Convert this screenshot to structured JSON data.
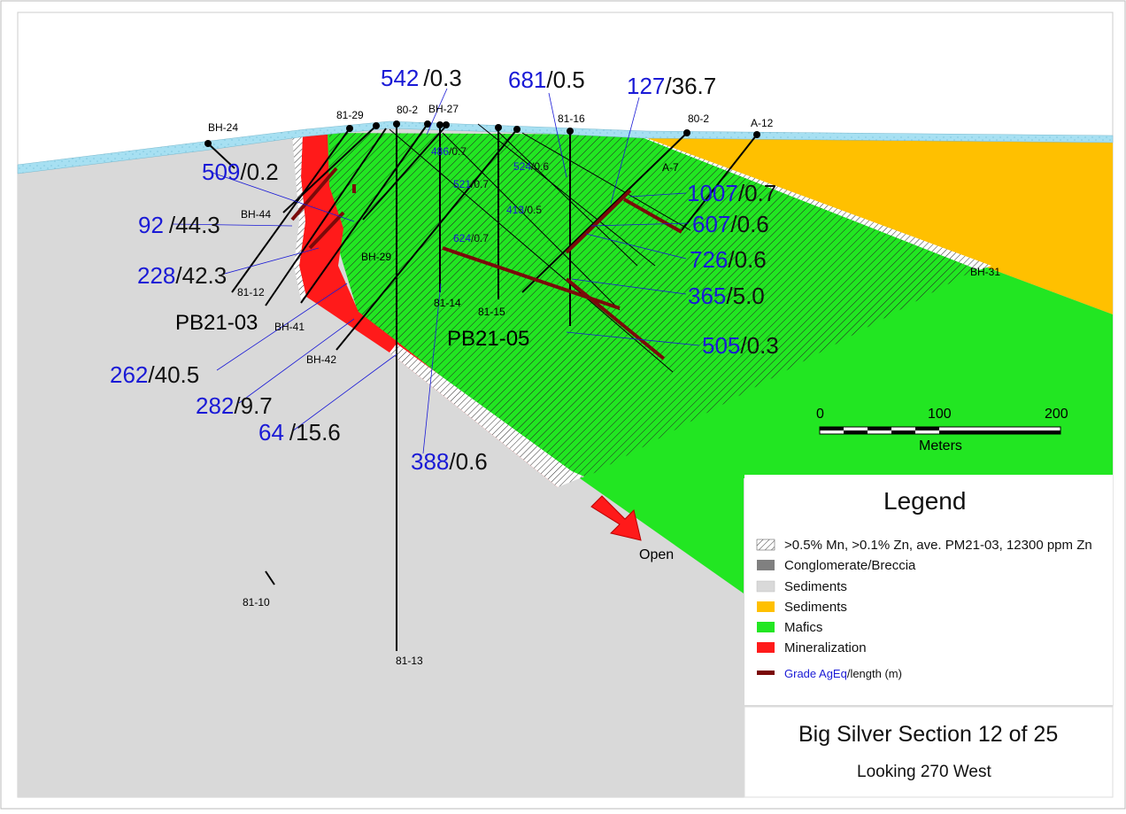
{
  "colors": {
    "sediments_grey": "#d9d9d9",
    "sediments_orange": "#ffc000",
    "mafics": "#22e622",
    "mineralization": "#ff1a1a",
    "overburden": "#9fdcf0",
    "grade_blue": "#1a1ad6",
    "grade_bar": "#7a0a0a",
    "conglomerate": "#808080"
  },
  "holes": {
    "bh24": "BH-24",
    "h8129": "81-29",
    "h802a": "80-2",
    "bh27": "BH-27",
    "h8116": "81-16",
    "h802b": "80-2",
    "a12": "A-12",
    "a7": "A-7",
    "bh44": "BH-44",
    "h8112": "81-12",
    "bh29": "BH-29",
    "bh41": "BH-41",
    "bh42": "BH-42",
    "h8114": "81-14",
    "h8115": "81-15",
    "bh31": "BH-31",
    "h8110": "81-10",
    "h8113": "81-13",
    "pb2103": "PB21-03",
    "pb2105": "PB21-05"
  },
  "grades": [
    {
      "id": "g542",
      "value": "542",
      "length": "/0.3"
    },
    {
      "id": "g681",
      "value": "681",
      "length": "/0.5"
    },
    {
      "id": "g127",
      "value": "127",
      "length": "/36.7"
    },
    {
      "id": "g509",
      "value": "509",
      "length": "/0.2"
    },
    {
      "id": "g92",
      "value": "92",
      "length": "/44.3"
    },
    {
      "id": "g228",
      "value": "228",
      "length": "/42.3"
    },
    {
      "id": "g262",
      "value": "262",
      "length": "/40.5"
    },
    {
      "id": "g282",
      "value": "282",
      "length": "/9.7"
    },
    {
      "id": "g64",
      "value": "64",
      "length": "/15.6"
    },
    {
      "id": "g388",
      "value": "388",
      "length": "/0.6"
    },
    {
      "id": "g1007",
      "value": "1007",
      "length": "/0.7"
    },
    {
      "id": "g607",
      "value": "607",
      "length": "/0.6"
    },
    {
      "id": "g726",
      "value": "726",
      "length": "/0.6"
    },
    {
      "id": "g365",
      "value": "365",
      "length": "/5.0"
    },
    {
      "id": "g505",
      "value": "505",
      "length": "/0.3"
    }
  ],
  "small_grades": [
    {
      "value": "486",
      "length": "/0.7"
    },
    {
      "value": "524",
      "length": "/0.6"
    },
    {
      "value": "521",
      "length": "/0.7"
    },
    {
      "value": "413",
      "length": "/0.5"
    },
    {
      "value": "624",
      "length": "/0.7"
    }
  ],
  "open_label": "Open",
  "scale": {
    "ticks": [
      "0",
      "100",
      "200"
    ],
    "unit": "Meters"
  },
  "legend": {
    "title": "Legend",
    "items": [
      {
        "label": ">0.5% Mn, >0.1% Zn, ave. PM21-03, 12300 ppm Zn",
        "swatch": "hatch"
      },
      {
        "label": "Conglomerate/Breccia",
        "swatch": "#808080"
      },
      {
        "label": "Sediments",
        "swatch": "#d9d9d9"
      },
      {
        "label": "Sediments",
        "swatch": "#ffc000"
      },
      {
        "label": "Mafics",
        "swatch": "#22e622"
      },
      {
        "label": "Mineralization",
        "swatch": "#ff1a1a"
      }
    ],
    "grade_key": {
      "grade": "Grade AgEq",
      "length": "/length (m)"
    }
  },
  "title_block": {
    "title": "Big Silver Section 12 of 25",
    "subtitle": "Looking 270 West"
  }
}
